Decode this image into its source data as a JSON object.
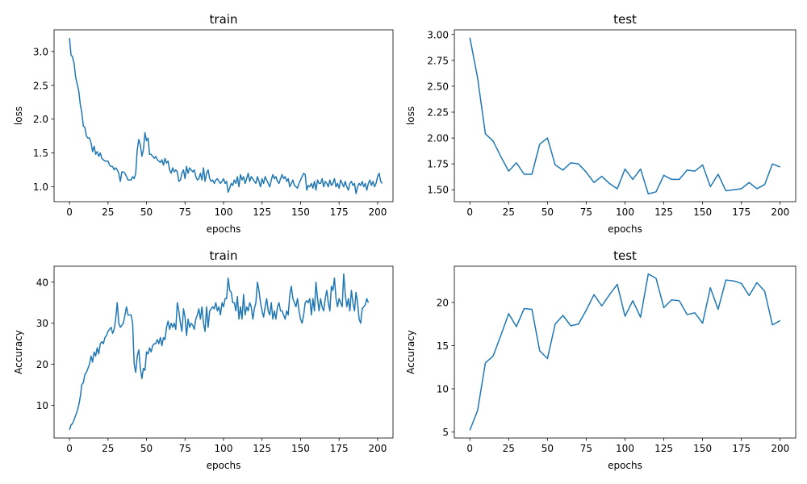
{
  "chart_data": [
    {
      "type": "line",
      "title": "train",
      "xlabel": "epochs",
      "ylabel": "loss",
      "xlim": [
        -10,
        210
      ],
      "ylim": [
        0.78,
        3.32
      ],
      "xticks": [
        0,
        25,
        50,
        75,
        100,
        125,
        150,
        175,
        200
      ],
      "yticks": [
        1.0,
        1.5,
        2.0,
        2.5,
        3.0
      ],
      "ytick_labels": [
        "1.0",
        "1.5",
        "2.0",
        "2.5",
        "3.0"
      ],
      "grid": false,
      "color": "#1f77b4",
      "series": [
        {
          "x_start": 0,
          "x_step": 1,
          "values": [
            3.2,
            2.95,
            2.92,
            2.82,
            2.62,
            2.52,
            2.42,
            2.22,
            2.1,
            1.9,
            1.88,
            1.75,
            1.72,
            1.72,
            1.65,
            1.52,
            1.6,
            1.48,
            1.52,
            1.45,
            1.5,
            1.42,
            1.4,
            1.38,
            1.38,
            1.38,
            1.32,
            1.3,
            1.3,
            1.25,
            1.28,
            1.25,
            1.2,
            1.08,
            1.22,
            1.22,
            1.2,
            1.15,
            1.1,
            1.1,
            1.1,
            1.15,
            1.12,
            1.2,
            1.55,
            1.7,
            1.62,
            1.45,
            1.55,
            1.8,
            1.68,
            1.72,
            1.48,
            1.48,
            1.45,
            1.42,
            1.45,
            1.4,
            1.38,
            1.36,
            1.4,
            1.32,
            1.42,
            1.35,
            1.38,
            1.25,
            1.2,
            1.28,
            1.22,
            1.25,
            1.22,
            1.08,
            1.1,
            1.2,
            1.25,
            1.12,
            1.3,
            1.2,
            1.28,
            1.25,
            1.22,
            1.25,
            1.15,
            1.1,
            1.12,
            1.2,
            1.1,
            1.28,
            1.08,
            1.2,
            1.25,
            1.12,
            1.08,
            1.1,
            1.05,
            1.1,
            1.12,
            1.08,
            1.05,
            1.08,
            1.12,
            1.05,
            1.08,
            0.92,
            0.98,
            1.05,
            1.02,
            1.1,
            1.05,
            1.15,
            1.0,
            1.18,
            1.1,
            1.15,
            1.05,
            1.12,
            1.2,
            1.08,
            1.15,
            1.12,
            1.08,
            1.05,
            1.15,
            1.08,
            1.0,
            1.12,
            1.05,
            1.15,
            1.1,
            1.05,
            1.0,
            1.1,
            1.18,
            1.12,
            1.15,
            1.08,
            1.05,
            1.12,
            1.18,
            1.12,
            1.15,
            1.08,
            1.12,
            1.0,
            1.05,
            1.1,
            1.02,
            1.0,
            0.98,
            1.05,
            1.1,
            1.15,
            1.2,
            1.18,
            0.95,
            1.02,
            1.0,
            1.05,
            0.98,
            1.08,
            0.95,
            1.1,
            1.05,
            1.05,
            1.12,
            1.0,
            1.08,
            1.05,
            1.0,
            1.1,
            1.02,
            1.05,
            1.12,
            1.0,
            1.05,
            0.98,
            1.1,
            1.05,
            1.0,
            1.08,
            1.0,
            0.95,
            1.05,
            1.08,
            1.02,
            1.05,
            0.9,
            1.0,
            1.05,
            1.02,
            1.08,
            1.0,
            1.05,
            0.95,
            1.05,
            1.1,
            1.02,
            1.08,
            1.0,
            1.05,
            1.15,
            1.2,
            1.08,
            1.05
          ]
        }
      ]
    },
    {
      "type": "line",
      "title": "test",
      "xlabel": "epochs",
      "ylabel": "loss",
      "xlim": [
        -10,
        210
      ],
      "ylim": [
        1.385,
        3.045
      ],
      "xticks": [
        0,
        25,
        50,
        75,
        100,
        125,
        150,
        175,
        200
      ],
      "yticks": [
        1.5,
        1.75,
        2.0,
        2.25,
        2.5,
        2.75,
        3.0
      ],
      "ytick_labels": [
        "1.50",
        "1.75",
        "2.00",
        "2.25",
        "2.50",
        "2.75",
        "3.00"
      ],
      "grid": false,
      "color": "#1f77b4",
      "series": [
        {
          "x": [
            0,
            5,
            10,
            15,
            20,
            25,
            30,
            35,
            40,
            45,
            50,
            55,
            60,
            65,
            70,
            75,
            80,
            85,
            90,
            95,
            100,
            105,
            110,
            115,
            120,
            125,
            130,
            135,
            140,
            145,
            150,
            155,
            160,
            165,
            170,
            175,
            180,
            185,
            190,
            195,
            200
          ],
          "values": [
            2.97,
            2.58,
            2.04,
            1.97,
            1.82,
            1.68,
            1.76,
            1.65,
            1.65,
            1.94,
            2.0,
            1.74,
            1.69,
            1.76,
            1.75,
            1.67,
            1.57,
            1.63,
            1.56,
            1.51,
            1.7,
            1.6,
            1.7,
            1.46,
            1.48,
            1.64,
            1.6,
            1.6,
            1.69,
            1.68,
            1.74,
            1.53,
            1.65,
            1.49,
            1.5,
            1.51,
            1.57,
            1.51,
            1.55,
            1.75,
            1.72
          ]
        }
      ]
    },
    {
      "type": "line",
      "title": "train",
      "xlabel": "epochs",
      "ylabel": "Accuracy",
      "xlim": [
        -10,
        210
      ],
      "ylim": [
        2.0,
        43.9
      ],
      "xticks": [
        0,
        25,
        50,
        75,
        100,
        125,
        150,
        175,
        200
      ],
      "yticks": [
        10,
        20,
        30,
        40
      ],
      "ytick_labels": [
        "10",
        "20",
        "30",
        "40"
      ],
      "grid": false,
      "color": "#1f77b4",
      "series": [
        {
          "x_start": 0,
          "x_step": 1,
          "values": [
            4.0,
            5.2,
            5.5,
            6.5,
            7.5,
            8.5,
            10.0,
            12.0,
            15.0,
            15.5,
            17.5,
            18.0,
            19.0,
            20.0,
            22.0,
            20.5,
            23.0,
            22.0,
            24.0,
            22.5,
            25.0,
            25.5,
            25.0,
            26.5,
            27.0,
            28.0,
            28.5,
            29.0,
            27.5,
            28.5,
            31.0,
            35.0,
            30.0,
            29.0,
            29.5,
            30.0,
            32.0,
            34.0,
            32.0,
            32.0,
            32.0,
            30.0,
            20.0,
            18.0,
            22.0,
            23.5,
            19.0,
            16.5,
            19.0,
            18.5,
            23.0,
            22.5,
            24.0,
            23.0,
            24.5,
            25.0,
            25.0,
            26.0,
            25.0,
            26.5,
            24.5,
            26.5,
            26.0,
            29.0,
            30.5,
            28.5,
            30.0,
            29.0,
            30.0,
            28.5,
            35.0,
            33.0,
            30.0,
            28.0,
            33.5,
            31.5,
            27.0,
            31.0,
            29.0,
            30.0,
            29.5,
            28.5,
            31.0,
            32.0,
            33.5,
            31.0,
            34.0,
            30.0,
            28.0,
            34.0,
            29.0,
            33.0,
            33.5,
            34.0,
            33.5,
            35.0,
            33.0,
            34.0,
            32.0,
            35.0,
            34.0,
            36.0,
            36.0,
            41.0,
            38.0,
            37.5,
            35.0,
            35.0,
            33.0,
            36.5,
            31.0,
            34.0,
            31.0,
            37.0,
            32.0,
            34.0,
            33.0,
            35.0,
            34.0,
            31.0,
            33.5,
            35.0,
            40.0,
            38.0,
            35.0,
            33.0,
            31.5,
            34.0,
            36.0,
            33.0,
            32.0,
            35.0,
            31.0,
            33.0,
            31.0,
            34.0,
            35.0,
            33.0,
            33.0,
            32.0,
            31.0,
            33.0,
            32.0,
            37.0,
            39.0,
            36.0,
            35.0,
            34.0,
            36.0,
            33.0,
            31.0,
            30.0,
            32.0,
            35.0,
            35.5,
            35.0,
            36.0,
            32.0,
            36.0,
            33.0,
            40.0,
            36.0,
            33.0,
            36.0,
            34.0,
            33.0,
            36.0,
            38.0,
            35.0,
            33.0,
            39.0,
            38.0,
            41.0,
            36.0,
            34.0,
            36.0,
            35.0,
            34.0,
            42.0,
            37.0,
            34.0,
            36.0,
            33.0,
            38.0,
            35.0,
            33.0,
            37.5,
            35.0,
            31.0,
            30.0,
            33.5,
            34.0,
            34.5,
            36.0,
            35.0
          ]
        }
      ]
    },
    {
      "type": "line",
      "title": "test",
      "xlabel": "epochs",
      "ylabel": "Accuracy",
      "xlim": [
        -10,
        210
      ],
      "ylim": [
        4.3,
        24.2
      ],
      "xticks": [
        0,
        25,
        50,
        75,
        100,
        125,
        150,
        175,
        200
      ],
      "yticks": [
        5,
        10,
        15,
        20
      ],
      "ytick_labels": [
        "5",
        "10",
        "15",
        "20"
      ],
      "grid": false,
      "color": "#1f77b4",
      "series": [
        {
          "x": [
            0,
            5,
            10,
            15,
            20,
            25,
            30,
            35,
            40,
            45,
            50,
            55,
            60,
            65,
            70,
            75,
            80,
            85,
            90,
            95,
            100,
            105,
            110,
            115,
            120,
            125,
            130,
            135,
            140,
            145,
            150,
            155,
            160,
            165,
            170,
            175,
            180,
            185,
            190,
            195,
            200
          ],
          "values": [
            5.2,
            7.5,
            13.0,
            13.8,
            16.2,
            18.7,
            17.2,
            19.3,
            19.2,
            14.4,
            13.5,
            17.5,
            18.5,
            17.3,
            17.5,
            19.1,
            20.9,
            19.6,
            20.9,
            22.1,
            18.4,
            20.2,
            18.3,
            23.3,
            22.8,
            19.4,
            20.3,
            20.2,
            18.6,
            18.8,
            17.6,
            21.7,
            19.2,
            22.6,
            22.5,
            22.2,
            20.8,
            22.3,
            21.3,
            17.4,
            17.9
          ]
        }
      ]
    }
  ]
}
